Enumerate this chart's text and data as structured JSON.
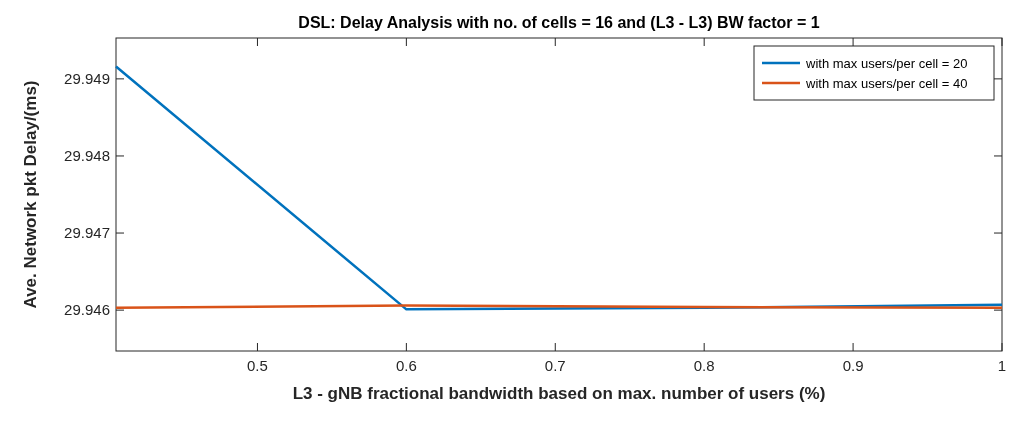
{
  "chart_data": {
    "type": "line",
    "title": "DSL: Delay Analysis with no. of cells = 16 and (L3 - L3) BW factor = 1",
    "xlabel": "L3 - gNB fractional bandwidth based on max. number of users (%)",
    "ylabel": "Ave. Network pkt Delay/(ms)",
    "x": [
      0.405,
      0.6,
      0.8,
      1
    ],
    "series": [
      {
        "name": "with max users/per cell = 20",
        "color": "#0072bd",
        "values": [
          29.94916,
          29.94601,
          29.94603,
          29.94607
        ]
      },
      {
        "name": "with max users/per cell = 40",
        "color": "#d95319",
        "values": [
          29.94603,
          29.94606,
          29.94604,
          29.94603
        ]
      }
    ],
    "xlim": [
      0.405,
      1
    ],
    "xticks": [
      0.5,
      0.6,
      0.7,
      0.8,
      0.9,
      1
    ],
    "ylim": [
      29.94547,
      29.94953
    ],
    "yticks": [
      29.946,
      29.947,
      29.948,
      29.949
    ],
    "grid": false,
    "legend": "top right"
  }
}
